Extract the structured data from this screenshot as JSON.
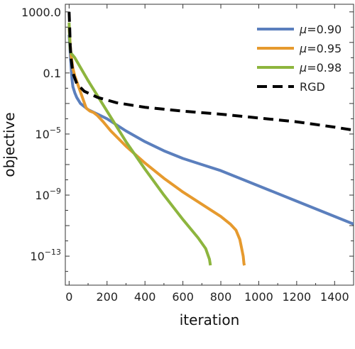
{
  "chart_data": {
    "type": "line",
    "title": "",
    "xlabel": "iteration",
    "ylabel": "objective",
    "xlim": [
      -20,
      1500
    ],
    "ylim_log10": [
      -14.9,
      3.5
    ],
    "y_scale": "log",
    "grid": false,
    "legend_position": "top-right",
    "x_ticks": [
      {
        "value": 0,
        "label": "0"
      },
      {
        "value": 200,
        "label": "200"
      },
      {
        "value": 400,
        "label": "400"
      },
      {
        "value": 600,
        "label": "600"
      },
      {
        "value": 800,
        "label": "800"
      },
      {
        "value": 1000,
        "label": "1000"
      },
      {
        "value": 1200,
        "label": "1200"
      },
      {
        "value": 1400,
        "label": "1400"
      }
    ],
    "y_ticks": [
      {
        "log10": 3,
        "label": "1000.0",
        "sup": ""
      },
      {
        "log10": -1,
        "label": "0.1",
        "sup": ""
      },
      {
        "log10": -5,
        "label": "10",
        "sup": "−5"
      },
      {
        "log10": -9,
        "label": "10",
        "sup": "−9"
      },
      {
        "log10": -13,
        "label": "10",
        "sup": "−13"
      }
    ],
    "series": [
      {
        "name": "μ=0.90",
        "legend_prefix": "μ",
        "legend_suffix": "=0.90",
        "color": "#5b7fbd",
        "dash": "",
        "points": [
          [
            0,
            1.5
          ],
          [
            5,
            0.5
          ],
          [
            10,
            -0.5
          ],
          [
            15,
            -1.4
          ],
          [
            20,
            -1.9
          ],
          [
            30,
            -2.3
          ],
          [
            40,
            -2.6
          ],
          [
            60,
            -3.0
          ],
          [
            100,
            -3.4
          ],
          [
            150,
            -3.7
          ],
          [
            200,
            -4.0
          ],
          [
            300,
            -4.8
          ],
          [
            400,
            -5.5
          ],
          [
            500,
            -6.1
          ],
          [
            600,
            -6.6
          ],
          [
            700,
            -7.0
          ],
          [
            800,
            -7.4
          ],
          [
            1000,
            -8.4
          ],
          [
            1200,
            -9.4
          ],
          [
            1400,
            -10.4
          ],
          [
            1500,
            -10.9
          ]
        ]
      },
      {
        "name": "μ=0.95",
        "legend_prefix": "μ",
        "legend_suffix": "=0.95",
        "color": "#e69a2e",
        "dash": "",
        "points": [
          [
            0,
            2.0
          ],
          [
            5,
            1.0
          ],
          [
            10,
            0.2
          ],
          [
            20,
            -0.7
          ],
          [
            30,
            -1.2
          ],
          [
            50,
            -1.9
          ],
          [
            70,
            -2.6
          ],
          [
            90,
            -3.3
          ],
          [
            110,
            -3.5
          ],
          [
            130,
            -3.6
          ],
          [
            150,
            -3.8
          ],
          [
            180,
            -4.2
          ],
          [
            220,
            -4.8
          ],
          [
            300,
            -5.8
          ],
          [
            400,
            -6.9
          ],
          [
            500,
            -7.9
          ],
          [
            600,
            -8.8
          ],
          [
            700,
            -9.6
          ],
          [
            800,
            -10.4
          ],
          [
            850,
            -10.9
          ],
          [
            880,
            -11.3
          ],
          [
            900,
            -11.9
          ],
          [
            910,
            -12.5
          ],
          [
            918,
            -13.0
          ],
          [
            922,
            -13.5
          ],
          [
            925,
            -13.6
          ]
        ]
      },
      {
        "name": "μ=0.98",
        "legend_prefix": "μ",
        "legend_suffix": "=0.98",
        "color": "#8db53e",
        "dash": "",
        "points": [
          [
            0,
            2.3
          ],
          [
            5,
            0.6
          ],
          [
            10,
            0.3
          ],
          [
            30,
            0.0
          ],
          [
            100,
            -1.5
          ],
          [
            200,
            -3.5
          ],
          [
            300,
            -5.5
          ],
          [
            400,
            -7.3
          ],
          [
            500,
            -9.0
          ],
          [
            600,
            -10.6
          ],
          [
            680,
            -11.8
          ],
          [
            720,
            -12.5
          ],
          [
            740,
            -13.2
          ],
          [
            745,
            -13.6
          ]
        ]
      },
      {
        "name": "RGD",
        "legend_prefix": "",
        "legend_suffix": "RGD",
        "color": "#000000",
        "dash": "14,8",
        "points": [
          [
            0,
            3.0
          ],
          [
            3,
            2.0
          ],
          [
            6,
            0.8
          ],
          [
            10,
            0.0
          ],
          [
            20,
            -1.0
          ],
          [
            40,
            -1.7
          ],
          [
            80,
            -2.2
          ],
          [
            150,
            -2.6
          ],
          [
            250,
            -2.95
          ],
          [
            400,
            -3.25
          ],
          [
            600,
            -3.5
          ],
          [
            800,
            -3.7
          ],
          [
            1000,
            -3.95
          ],
          [
            1200,
            -4.2
          ],
          [
            1400,
            -4.55
          ],
          [
            1500,
            -4.75
          ]
        ]
      }
    ]
  }
}
